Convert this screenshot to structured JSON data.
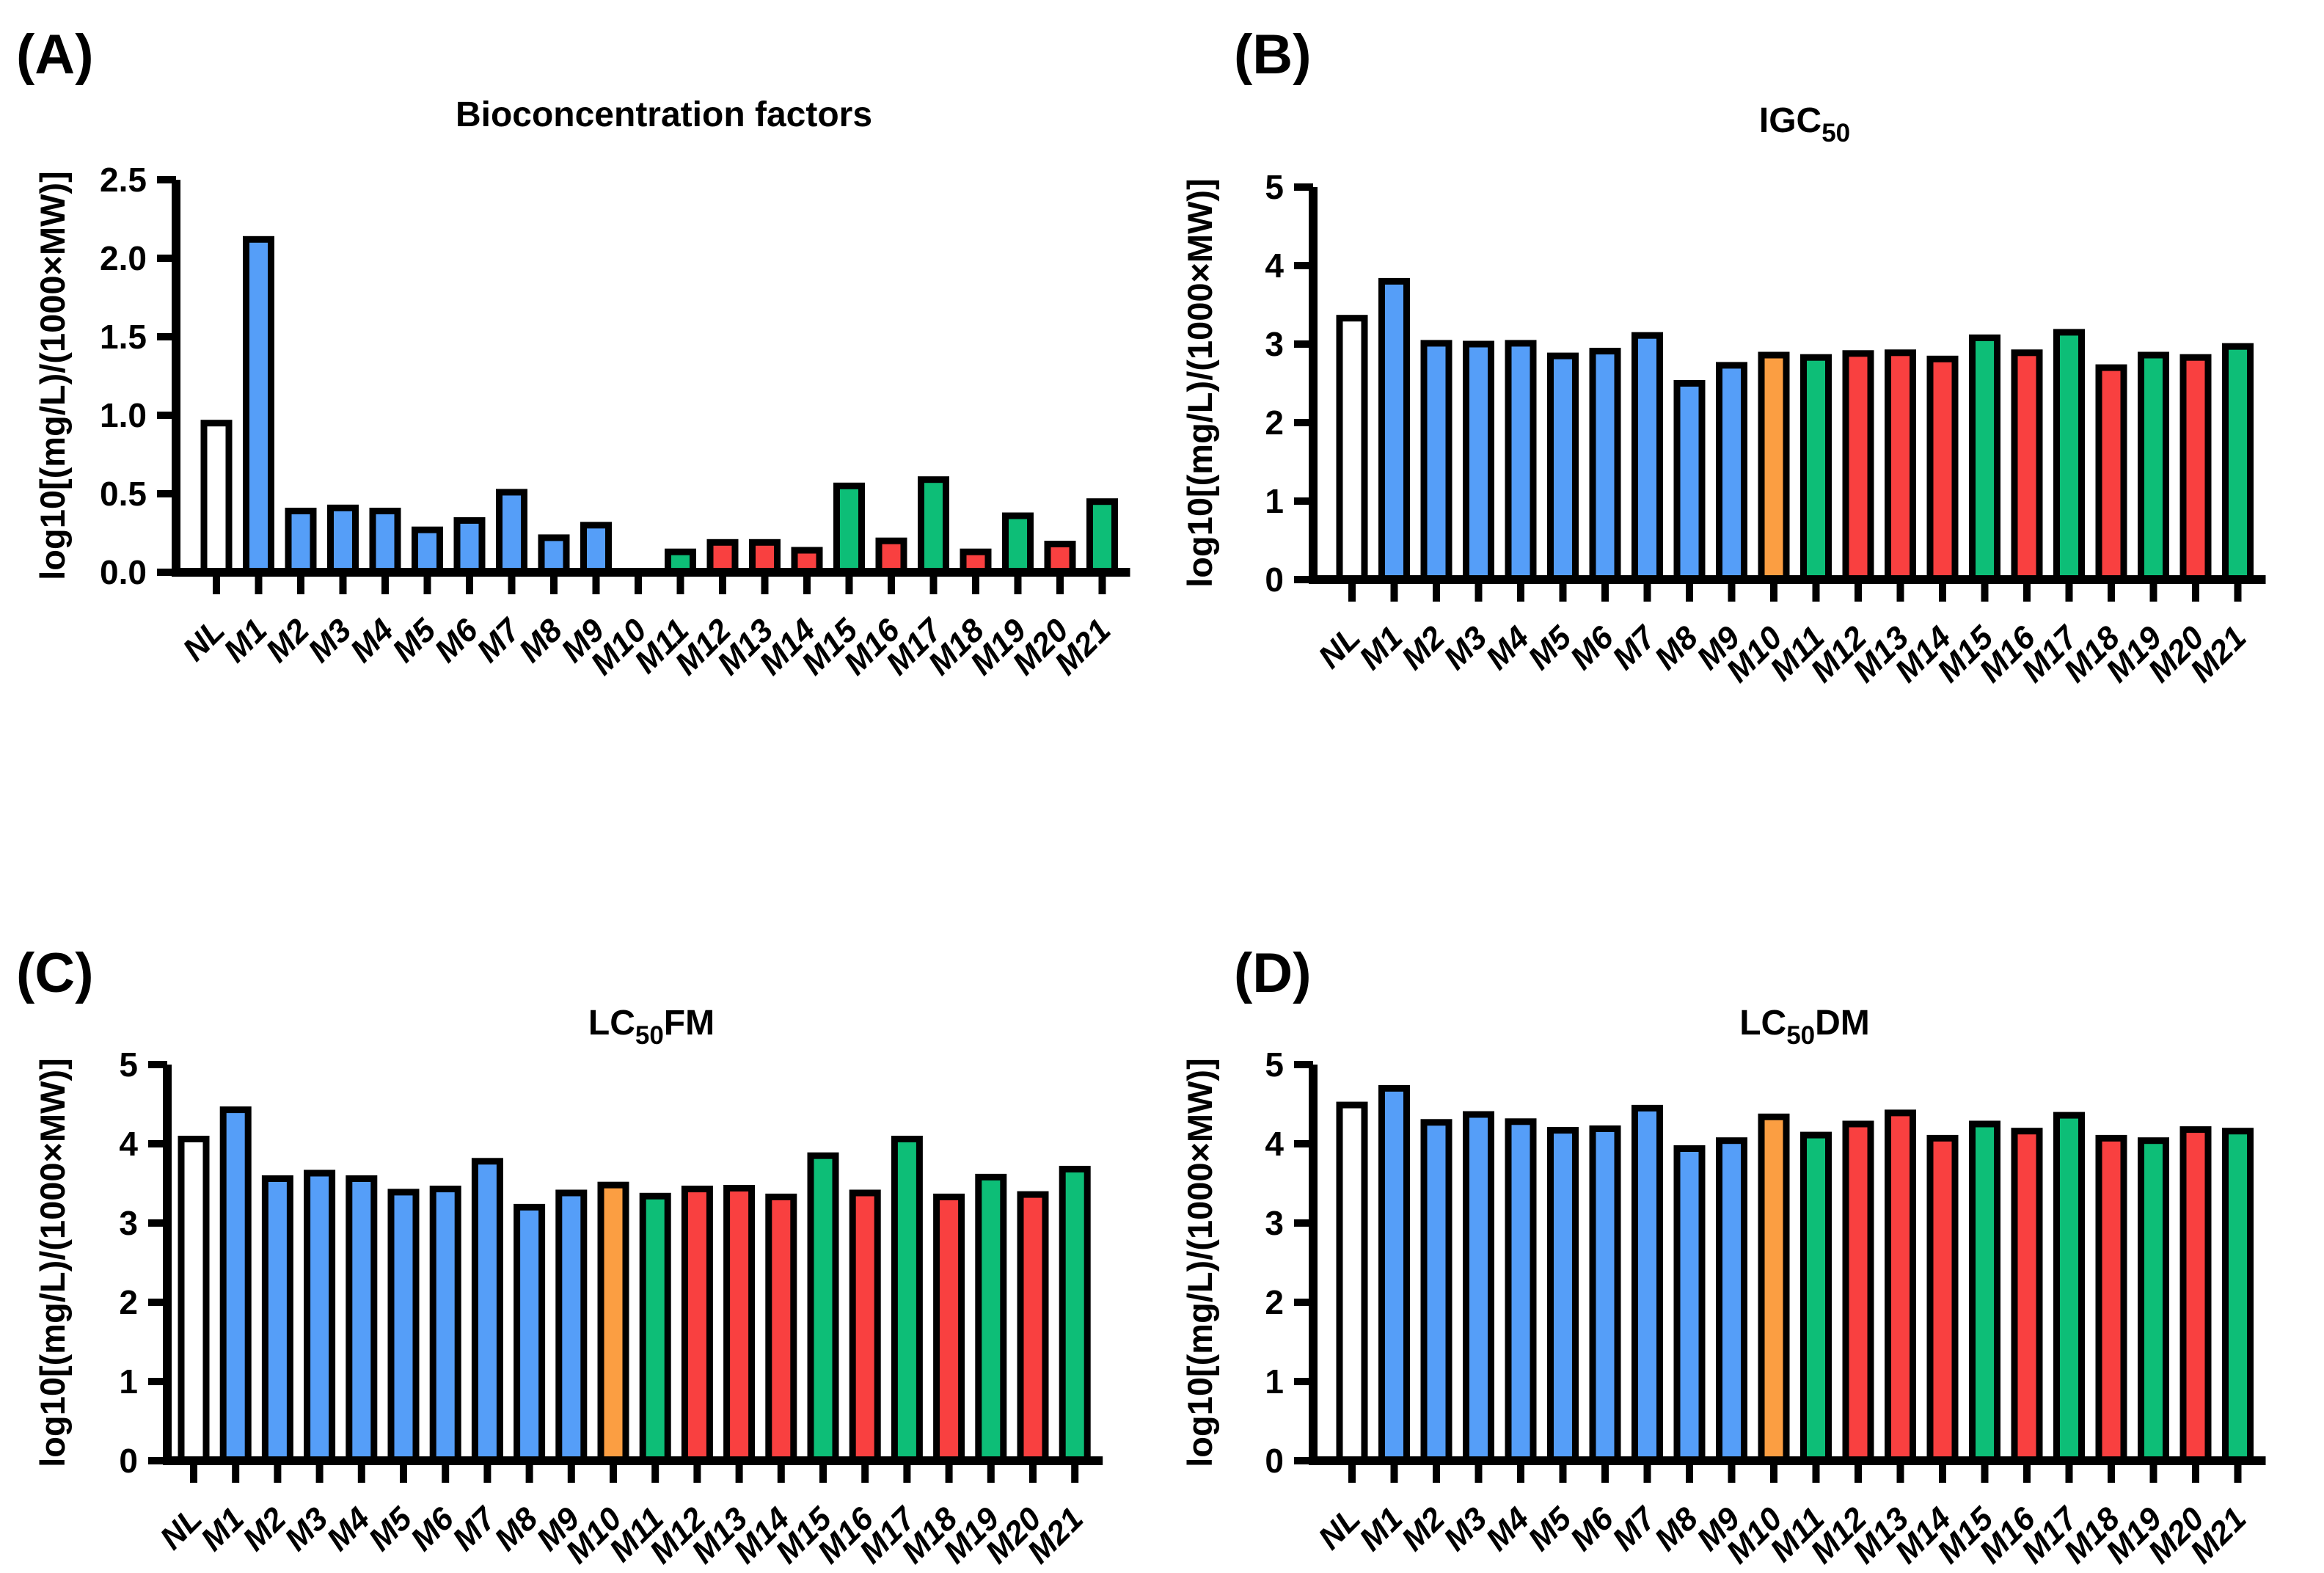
{
  "figure": {
    "background": "#FFFFFF",
    "y_axis_label": "log10[(mg/L)/(1000×MW)]",
    "categories": [
      "NL",
      "M1",
      "M2",
      "M3",
      "M4",
      "M5",
      "M6",
      "M7",
      "M8",
      "M9",
      "M10",
      "M11",
      "M12",
      "M13",
      "M14",
      "M15",
      "M16",
      "M17",
      "M18",
      "M19",
      "M20",
      "M21"
    ],
    "category_color_keys": [
      "white",
      "blue",
      "blue",
      "blue",
      "blue",
      "blue",
      "blue",
      "blue",
      "blue",
      "blue",
      "orange",
      "green",
      "red",
      "red",
      "red",
      "green",
      "red",
      "green",
      "red",
      "green",
      "red",
      "green"
    ],
    "colors": {
      "white": "#FFFFFF",
      "blue": "#559EF8",
      "orange": "#FB9E42",
      "green": "#0DBE77",
      "red": "#F94040",
      "bar_border": "#000000",
      "axis": "#000000"
    }
  },
  "chart_data": [
    {
      "type": "bar",
      "panel_letter": "(A)",
      "title": {
        "prefix": "Bioconcentration factors",
        "sub": "",
        "suffix": ""
      },
      "xlabel": "",
      "ylabel": "log10[(mg/L)/(1000×MW)]",
      "ylim": [
        0,
        2.5
      ],
      "ytick_labels": [
        "0.0",
        "0.5",
        "1.0",
        "1.5",
        "2.0",
        "2.5"
      ],
      "ytick_values": [
        0,
        0.5,
        1.0,
        1.5,
        2.0,
        2.5
      ],
      "grid": false,
      "legend": "none",
      "categories": [
        "NL",
        "M1",
        "M2",
        "M3",
        "M4",
        "M5",
        "M6",
        "M7",
        "M8",
        "M9",
        "M10",
        "M11",
        "M12",
        "M13",
        "M14",
        "M15",
        "M16",
        "M17",
        "M18",
        "M19",
        "M20",
        "M21"
      ],
      "values": [
        0.95,
        2.12,
        0.39,
        0.41,
        0.39,
        0.27,
        0.33,
        0.51,
        0.22,
        0.3,
        0,
        0.13,
        0.19,
        0.19,
        0.14,
        0.55,
        0.2,
        0.59,
        0.13,
        0.36,
        0.18,
        0.45
      ]
    },
    {
      "type": "bar",
      "panel_letter": "(B)",
      "title": {
        "prefix": "IGC",
        "sub": "50",
        "suffix": ""
      },
      "xlabel": "",
      "ylabel": "log10[(mg/L)/(1000×MW)]",
      "ylim": [
        0,
        5
      ],
      "ytick_labels": [
        "0",
        "1",
        "2",
        "3",
        "4",
        "5"
      ],
      "ytick_values": [
        0,
        1,
        2,
        3,
        4,
        5
      ],
      "grid": false,
      "legend": "none",
      "categories": [
        "NL",
        "M1",
        "M2",
        "M3",
        "M4",
        "M5",
        "M6",
        "M7",
        "M8",
        "M9",
        "M10",
        "M11",
        "M12",
        "M13",
        "M14",
        "M15",
        "M16",
        "M17",
        "M18",
        "M19",
        "M20",
        "M21"
      ],
      "values": [
        3.33,
        3.8,
        3.01,
        3.0,
        3.01,
        2.85,
        2.91,
        3.11,
        2.5,
        2.73,
        2.86,
        2.83,
        2.88,
        2.89,
        2.81,
        3.08,
        2.89,
        3.15,
        2.7,
        2.86,
        2.83,
        2.97
      ]
    },
    {
      "type": "bar",
      "panel_letter": "(C)",
      "title": {
        "prefix": "LC",
        "sub": "50",
        "suffix": "FM"
      },
      "xlabel": "",
      "ylabel": "log10[(mg/L)/(1000×MW)]",
      "ylim": [
        0,
        5
      ],
      "ytick_labels": [
        "0",
        "1",
        "2",
        "3",
        "4",
        "5"
      ],
      "ytick_values": [
        0,
        1,
        2,
        3,
        4,
        5
      ],
      "grid": false,
      "legend": "none",
      "categories": [
        "NL",
        "M1",
        "M2",
        "M3",
        "M4",
        "M5",
        "M6",
        "M7",
        "M8",
        "M9",
        "M10",
        "M11",
        "M12",
        "M13",
        "M14",
        "M15",
        "M16",
        "M17",
        "M18",
        "M19",
        "M20",
        "M21"
      ],
      "values": [
        4.06,
        4.43,
        3.56,
        3.63,
        3.56,
        3.39,
        3.43,
        3.78,
        3.2,
        3.38,
        3.48,
        3.34,
        3.43,
        3.44,
        3.33,
        3.85,
        3.38,
        4.06,
        3.33,
        3.58,
        3.36,
        3.68
      ]
    },
    {
      "type": "bar",
      "panel_letter": "(D)",
      "title": {
        "prefix": "LC",
        "sub": "50",
        "suffix": "DM"
      },
      "xlabel": "",
      "ylabel": "log10[(mg/L)/(1000×MW)]",
      "ylim": [
        0,
        5
      ],
      "ytick_labels": [
        "0",
        "1",
        "2",
        "3",
        "4",
        "5"
      ],
      "ytick_values": [
        0,
        1,
        2,
        3,
        4,
        5
      ],
      "grid": false,
      "legend": "none",
      "categories": [
        "NL",
        "M1",
        "M2",
        "M3",
        "M4",
        "M5",
        "M6",
        "M7",
        "M8",
        "M9",
        "M10",
        "M11",
        "M12",
        "M13",
        "M14",
        "M15",
        "M16",
        "M17",
        "M18",
        "M19",
        "M20",
        "M21"
      ],
      "values": [
        4.49,
        4.7,
        4.27,
        4.37,
        4.28,
        4.17,
        4.19,
        4.45,
        3.94,
        4.04,
        4.34,
        4.11,
        4.25,
        4.39,
        4.07,
        4.25,
        4.16,
        4.36,
        4.07,
        4.04,
        4.18,
        4.16
      ]
    }
  ]
}
